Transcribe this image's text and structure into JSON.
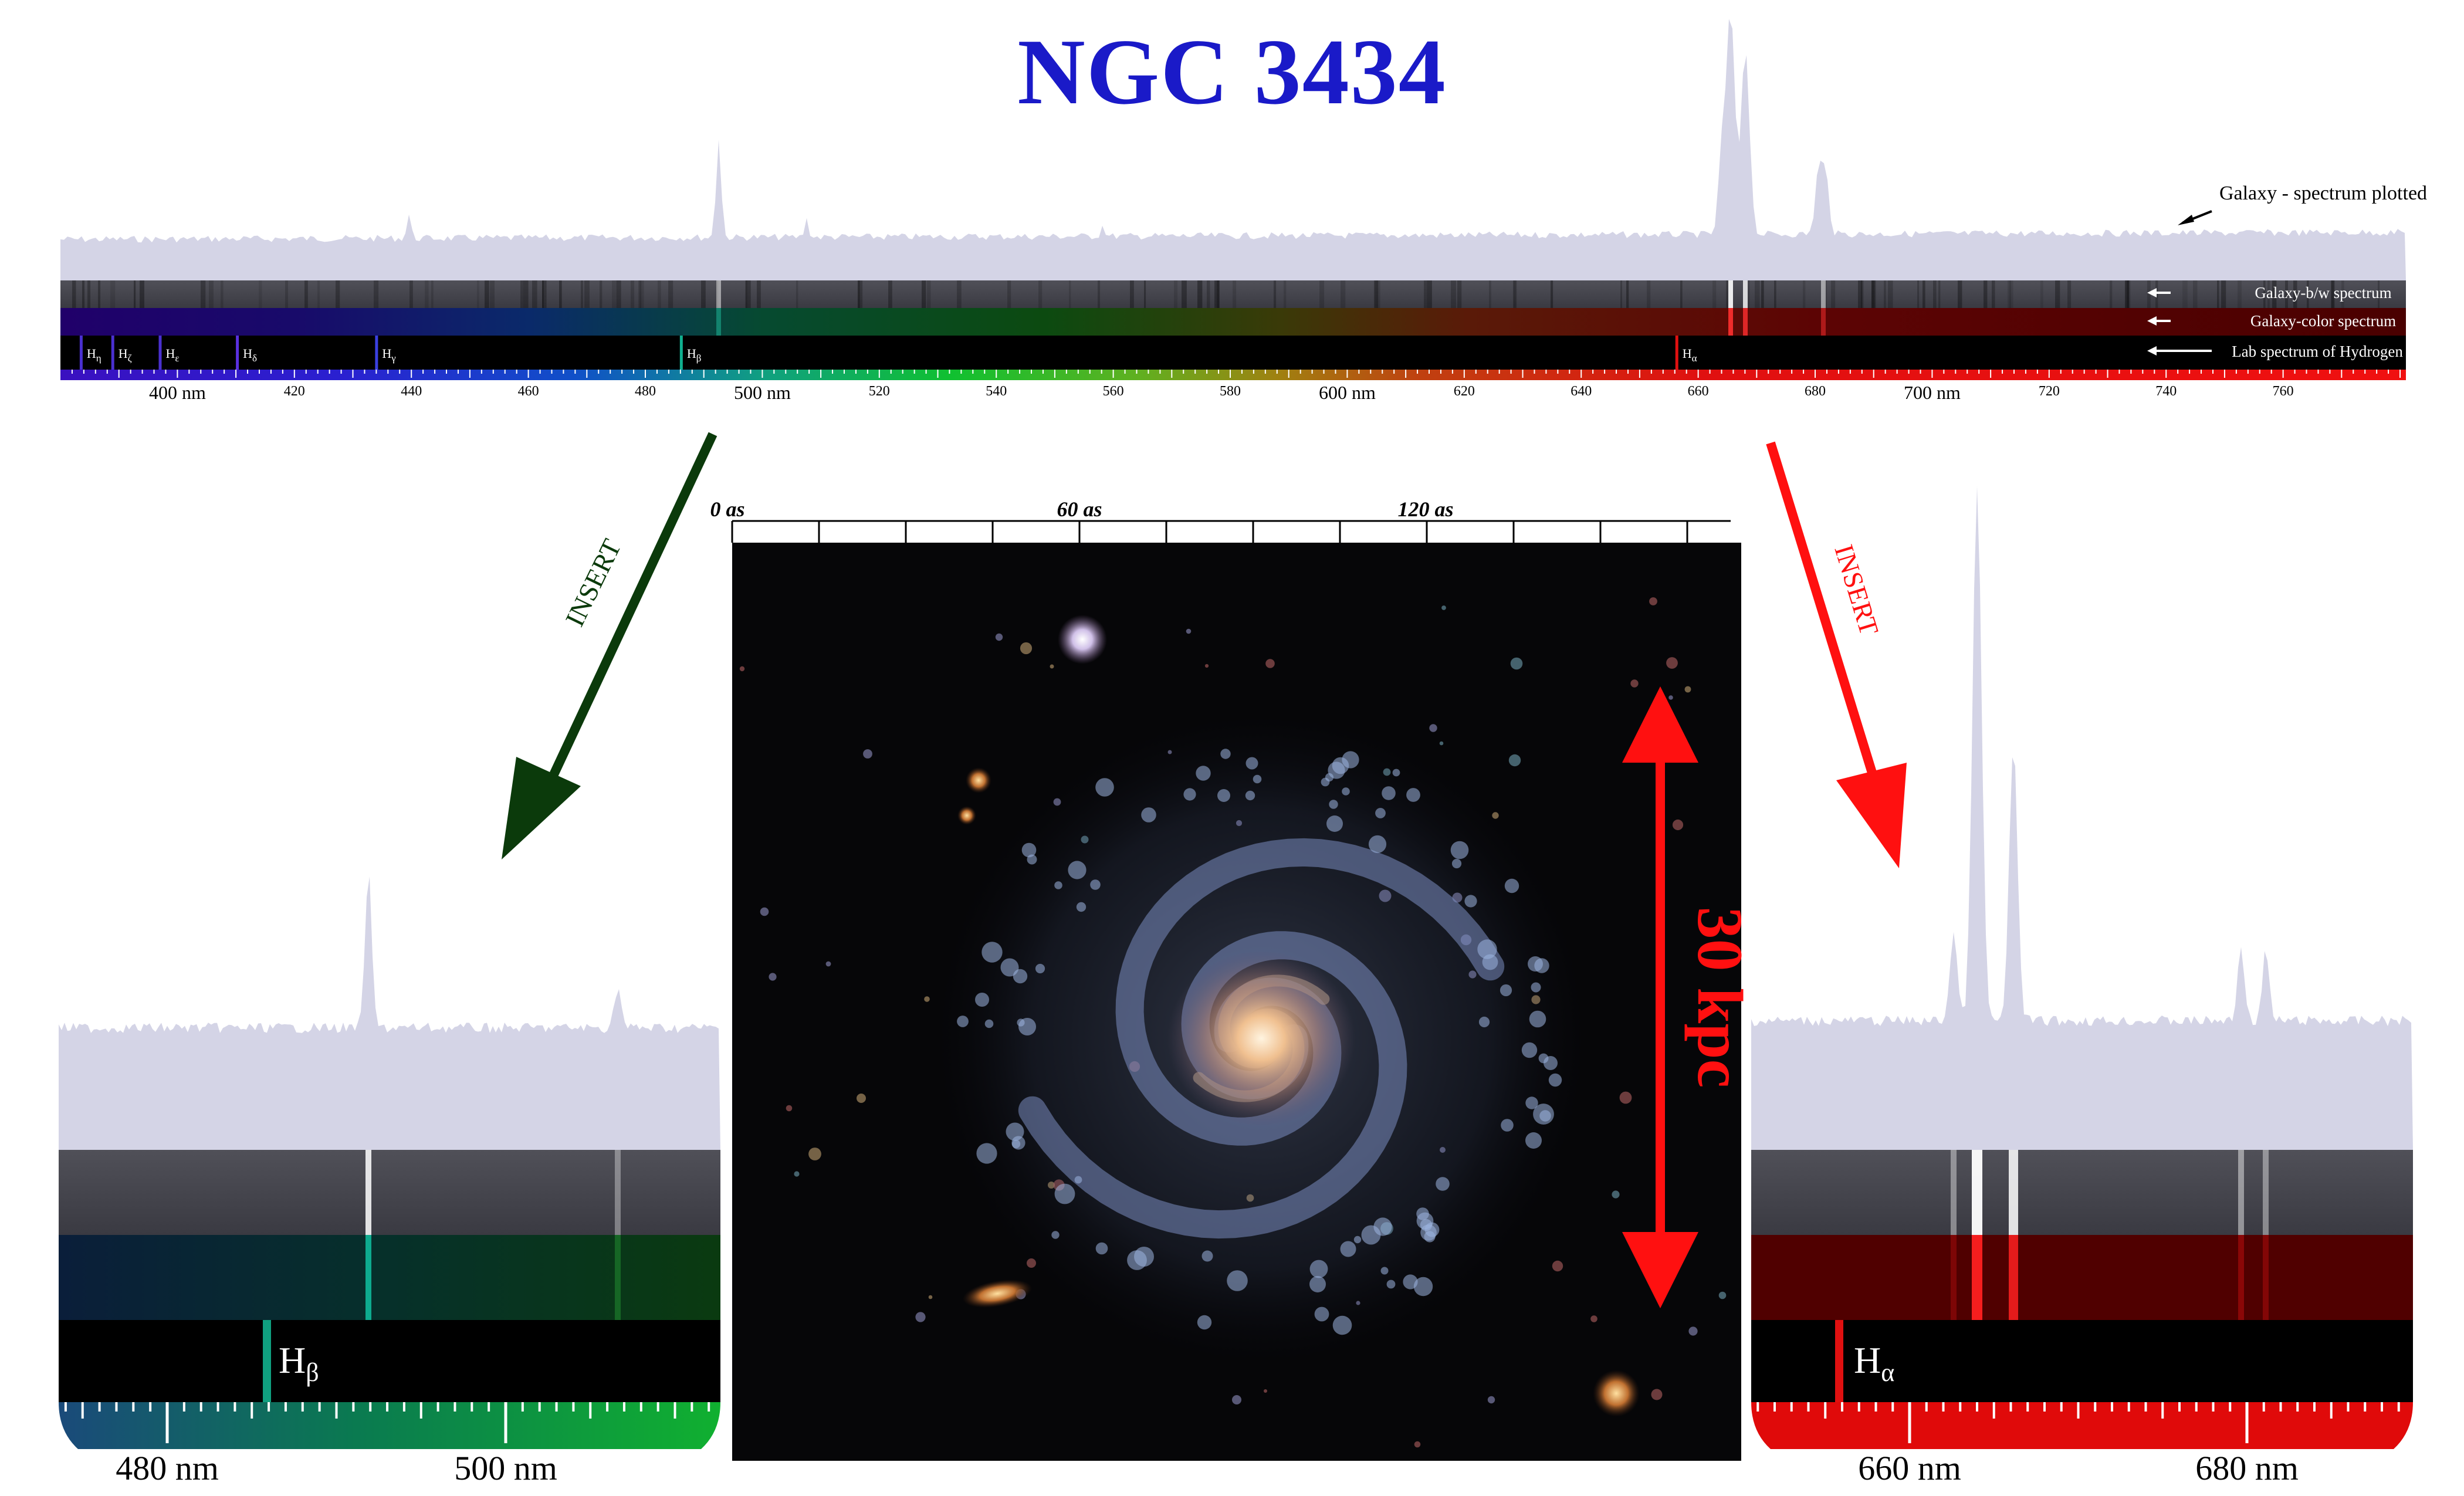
{
  "title": "NGC 3434",
  "top_panel": {
    "annotations": {
      "plotted": "Galaxy - spectrum plotted",
      "bw": "Galaxy-b/w spectrum",
      "color": "Galaxy-color spectrum",
      "lab": "Lab spectrum of Hydrogen"
    },
    "major_ticks": [
      {
        "wl": 400,
        "label": "400 nm"
      },
      {
        "wl": 500,
        "label": "500 nm"
      },
      {
        "wl": 600,
        "label": "600 nm"
      },
      {
        "wl": 700,
        "label": "700 nm"
      }
    ],
    "minor_ticks": [
      {
        "wl": 420,
        "label": "420"
      },
      {
        "wl": 440,
        "label": "440"
      },
      {
        "wl": 460,
        "label": "460"
      },
      {
        "wl": 480,
        "label": "480"
      },
      {
        "wl": 520,
        "label": "520"
      },
      {
        "wl": 540,
        "label": "540"
      },
      {
        "wl": 560,
        "label": "560"
      },
      {
        "wl": 580,
        "label": "580"
      },
      {
        "wl": 620,
        "label": "620"
      },
      {
        "wl": 640,
        "label": "640"
      },
      {
        "wl": 660,
        "label": "660"
      },
      {
        "wl": 680,
        "label": "680"
      },
      {
        "wl": 720,
        "label": "720"
      },
      {
        "wl": 740,
        "label": "740"
      },
      {
        "wl": 760,
        "label": "760"
      }
    ],
    "hydrogen_lines": [
      {
        "wl": 383.5,
        "base": "H",
        "sub": "η"
      },
      {
        "wl": 388.9,
        "base": "H",
        "sub": "ζ"
      },
      {
        "wl": 397.0,
        "base": "H",
        "sub": "ε"
      },
      {
        "wl": 410.2,
        "base": "H",
        "sub": "δ"
      },
      {
        "wl": 434.0,
        "base": "H",
        "sub": "γ"
      },
      {
        "wl": 486.1,
        "base": "H",
        "sub": "β"
      },
      {
        "wl": 656.3,
        "base": "H",
        "sub": "α"
      }
    ]
  },
  "left_insert": {
    "label": "INSERT",
    "line": {
      "base": "H",
      "sub": "β"
    },
    "ticks": [
      {
        "wl": 480,
        "label": "480 nm"
      },
      {
        "wl": 500,
        "label": "500 nm"
      }
    ]
  },
  "right_insert": {
    "label": "INSERT",
    "line": {
      "base": "H",
      "sub": "α"
    },
    "ticks": [
      {
        "wl": 660,
        "label": "660 nm"
      },
      {
        "wl": 680,
        "label": "680 nm"
      }
    ]
  },
  "galaxy_image": {
    "scale_labels": [
      "0 as",
      "60 as",
      "120 as"
    ],
    "size_label": "30 kpc"
  },
  "colors": {
    "title": "#1a1ac8",
    "spectrum_fill": "#d4d4e6",
    "left_arrow": "#0b3a0b",
    "right_arrow": "#ff1010"
  }
}
